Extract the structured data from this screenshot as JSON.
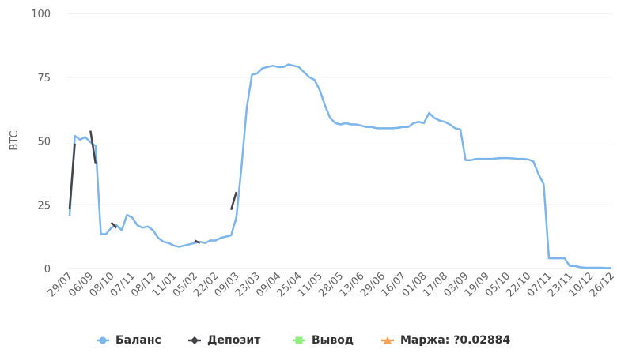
{
  "chart_data": {
    "type": "line",
    "y_label": "BTC",
    "categories": [
      "29/07",
      null,
      null,
      null,
      "06/09",
      null,
      null,
      null,
      "08/10",
      null,
      null,
      null,
      "07/11",
      null,
      null,
      null,
      "08/12",
      null,
      null,
      null,
      "11/01",
      null,
      null,
      null,
      "05/02",
      null,
      null,
      null,
      "22/02",
      null,
      null,
      null,
      "09/03",
      null,
      null,
      null,
      "23/03",
      null,
      null,
      null,
      "09/04",
      null,
      null,
      null,
      "25/04",
      null,
      null,
      null,
      "11/05",
      null,
      null,
      null,
      "28/05",
      null,
      null,
      null,
      "13/06",
      null,
      null,
      null,
      "29/06",
      null,
      null,
      null,
      "16/07",
      null,
      null,
      null,
      "01/08",
      null,
      null,
      null,
      "17/08",
      null,
      null,
      null,
      "03/09",
      null,
      null,
      null,
      "19/09",
      null,
      null,
      null,
      "05/10",
      null,
      null,
      null,
      "22/10",
      null,
      null,
      null,
      "07/11",
      null,
      null,
      null,
      "23/11",
      null,
      null,
      null,
      "10/12",
      null,
      null,
      null,
      "26/12"
    ],
    "series": [
      {
        "name": "Баланс",
        "color": "#7cb5ec",
        "marker": "circle",
        "values": [
          20.7,
          52,
          50.5,
          51.5,
          49.5,
          48,
          13.5,
          13.5,
          16,
          17,
          15,
          21,
          20,
          17,
          16,
          16.5,
          15,
          12,
          10.5,
          10,
          9,
          8.5,
          9,
          9.5,
          10,
          10.5,
          10,
          11,
          11,
          12,
          12.5,
          13,
          20,
          40,
          63,
          76,
          76.5,
          78.5,
          79,
          79.5,
          79,
          79,
          80,
          79.5,
          79,
          77,
          75,
          74,
          70,
          64,
          59,
          57,
          56.5,
          57,
          56.5,
          56.5,
          56,
          55.5,
          55.5,
          55,
          55,
          55,
          55,
          55.2,
          55.5,
          55.5,
          57,
          57.5,
          57,
          61,
          59,
          58,
          57.5,
          56.5,
          55,
          54.5,
          42.5,
          42.5,
          43,
          43,
          43,
          43,
          43.2,
          43.3,
          43.3,
          43.2,
          43,
          43,
          42.8,
          42,
          37,
          33,
          4,
          4,
          4,
          4,
          1,
          1,
          0.5,
          0.3,
          0.3,
          0.3,
          0.3,
          0.2,
          0.2
        ]
      },
      {
        "name": "Депозит",
        "color": "#434348",
        "marker": "diamond",
        "values": [
          23.5,
          49,
          null,
          null,
          54,
          41,
          null,
          null,
          18,
          16,
          null,
          null,
          null,
          null,
          null,
          null,
          null,
          null,
          null,
          null,
          null,
          null,
          null,
          null,
          11,
          10,
          null,
          null,
          null,
          null,
          null,
          23,
          30,
          null,
          null,
          null,
          null,
          null,
          null,
          null,
          null,
          null,
          null,
          null,
          null,
          null,
          null,
          null,
          null,
          null,
          null,
          null,
          null,
          null,
          null,
          null,
          null,
          null,
          null,
          null,
          null,
          null,
          null,
          null,
          null,
          null,
          null,
          null,
          null,
          null,
          null,
          null,
          null,
          null,
          null,
          null,
          null,
          null,
          null,
          null,
          null,
          null,
          null,
          null,
          null,
          null,
          null,
          null,
          null,
          null,
          null,
          null,
          null,
          null,
          null,
          null,
          null,
          null,
          null,
          null,
          null,
          null,
          null,
          null,
          null
        ]
      },
      {
        "name": "Вывод",
        "color": "#90ed7d",
        "marker": "square",
        "values": [
          null,
          null,
          null,
          null,
          null,
          null,
          null,
          null,
          null,
          null,
          null,
          null,
          null,
          null,
          null,
          null,
          null,
          null,
          null,
          null,
          null,
          null,
          null,
          null,
          null,
          null,
          null,
          null,
          null,
          null,
          null,
          null,
          null,
          null,
          null,
          null,
          null,
          null,
          null,
          null,
          null,
          null,
          null,
          null,
          null,
          null,
          null,
          null,
          null,
          null,
          null,
          null,
          null,
          null,
          null,
          null,
          null,
          null,
          null,
          null,
          null,
          null,
          null,
          null,
          null,
          null,
          null,
          null,
          null,
          null,
          null,
          null,
          null,
          null,
          null,
          null,
          null,
          null,
          null,
          null,
          null,
          null,
          null,
          null,
          null,
          null,
          null,
          null,
          null,
          null,
          null,
          null,
          null,
          null,
          null,
          null,
          null,
          null,
          null,
          null,
          null,
          null,
          null,
          null,
          null
        ]
      },
      {
        "name": "Маржа: ?0.02884",
        "color": "#f7a35c",
        "marker": "triangle",
        "values": [
          null,
          null,
          null,
          null,
          null,
          null,
          null,
          null,
          null,
          null,
          null,
          null,
          null,
          null,
          null,
          null,
          null,
          null,
          null,
          null,
          null,
          null,
          null,
          null,
          null,
          null,
          null,
          null,
          null,
          null,
          null,
          null,
          null,
          null,
          null,
          null,
          null,
          null,
          null,
          null,
          null,
          null,
          null,
          null,
          null,
          null,
          null,
          null,
          null,
          null,
          null,
          null,
          null,
          null,
          null,
          null,
          null,
          null,
          null,
          null,
          null,
          null,
          null,
          null,
          null,
          null,
          null,
          null,
          null,
          null,
          null,
          null,
          null,
          null,
          null,
          null,
          null,
          null,
          null,
          null,
          null,
          null,
          null,
          null,
          null,
          null,
          null,
          null,
          null,
          null,
          null,
          null,
          null,
          null,
          null,
          null,
          null,
          null,
          null,
          null,
          null,
          null,
          null,
          null,
          null
        ]
      }
    ],
    "ylim": [
      0,
      100
    ],
    "yticks": [
      0,
      25,
      50,
      75,
      100
    ],
    "grid": true
  }
}
